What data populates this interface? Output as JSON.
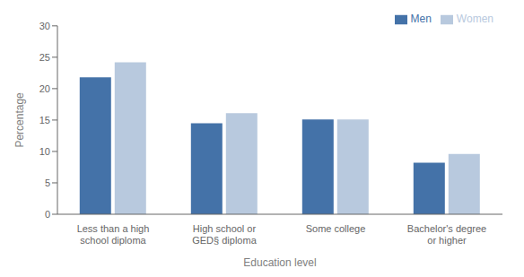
{
  "chart_data": {
    "type": "bar",
    "xlabel": "Education level",
    "ylabel": "Percentage",
    "categories": [
      "Less than a high\nschool diploma",
      "High school or\nGED§ diploma",
      "Some college",
      "Bachelor's degree\nor higher"
    ],
    "series": [
      {
        "name": "Men",
        "color": "#4472a8",
        "values": [
          21.8,
          14.5,
          15.1,
          8.2
        ]
      },
      {
        "name": "Women",
        "color": "#b8c9de",
        "values": [
          24.2,
          16.1,
          15.1,
          9.6
        ]
      }
    ],
    "ylim": [
      0,
      30
    ],
    "yticks": [
      0,
      5,
      10,
      15,
      20,
      25,
      30
    ],
    "grid": false,
    "legend": "top-right"
  }
}
